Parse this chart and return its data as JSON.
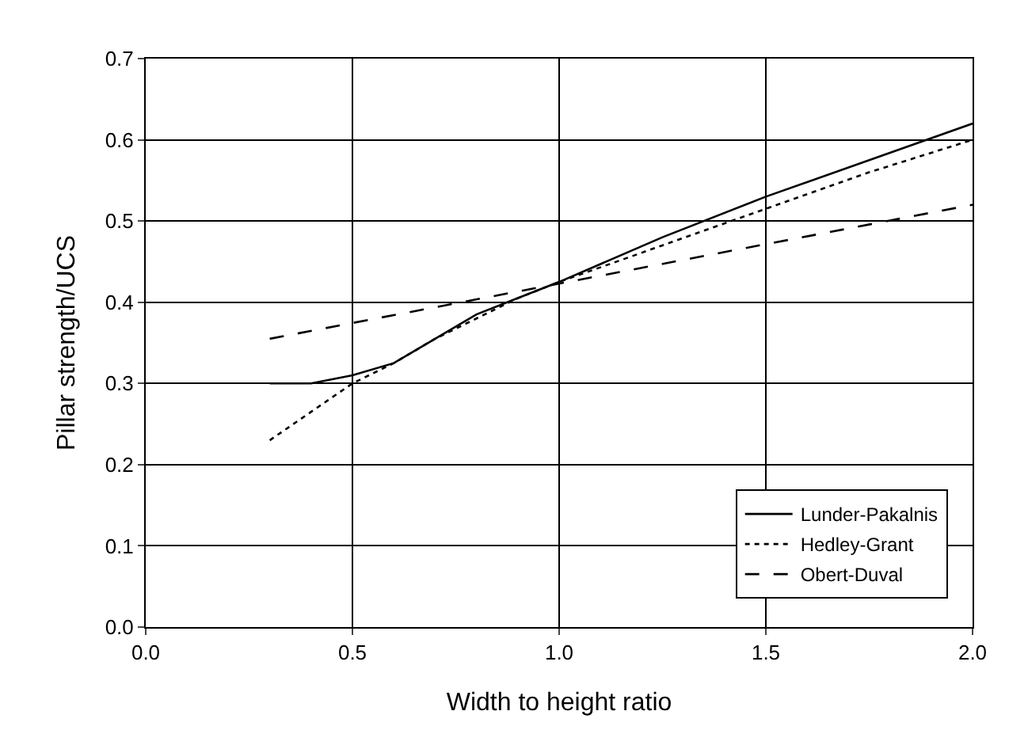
{
  "chart_data": {
    "type": "line",
    "xlabel": "Width to height ratio",
    "ylabel": "Pillar strength/UCS",
    "xlim": [
      0,
      2
    ],
    "xticks": [
      {
        "value": 0,
        "label": "0.0"
      },
      0.5,
      {
        "value": 1,
        "label": "1.0"
      },
      1.5,
      {
        "value": 2,
        "label": "2.0"
      }
    ],
    "ylim": [
      0,
      0.7
    ],
    "yticks": [
      {
        "value": 0,
        "label": "0.0"
      },
      0.1,
      0.2,
      0.3,
      0.4,
      0.5,
      0.6,
      0.7
    ],
    "grid": true,
    "legend": "bottom right",
    "marker": "none",
    "series": [
      {
        "name": "Lunder-Pakalnis",
        "color": "#000000",
        "line_style": "solid",
        "x": [
          0.3,
          0.4,
          0.5,
          0.6,
          0.7,
          0.8,
          0.9,
          1.0,
          1.25,
          1.5,
          1.75,
          2.0
        ],
        "values": [
          0.3,
          0.3,
          0.31,
          0.325,
          0.355,
          0.385,
          0.405,
          0.425,
          0.48,
          0.53,
          0.575,
          0.62
        ]
      },
      {
        "name": "Hedley-Grant",
        "color": "#000000",
        "line_style": "dotted",
        "x": [
          0.3,
          0.4,
          0.5,
          0.6,
          0.7,
          0.8,
          0.9,
          1.0,
          1.25,
          1.5,
          1.75,
          2.0
        ],
        "values": [
          0.23,
          0.265,
          0.3,
          0.325,
          0.355,
          0.38,
          0.405,
          0.425,
          0.47,
          0.515,
          0.56,
          0.6
        ]
      },
      {
        "name": "Obert-Duval",
        "color": "#000000",
        "line_style": "dashed",
        "x": [
          0.3,
          2.0
        ],
        "values": [
          0.355,
          0.52
        ]
      }
    ]
  }
}
